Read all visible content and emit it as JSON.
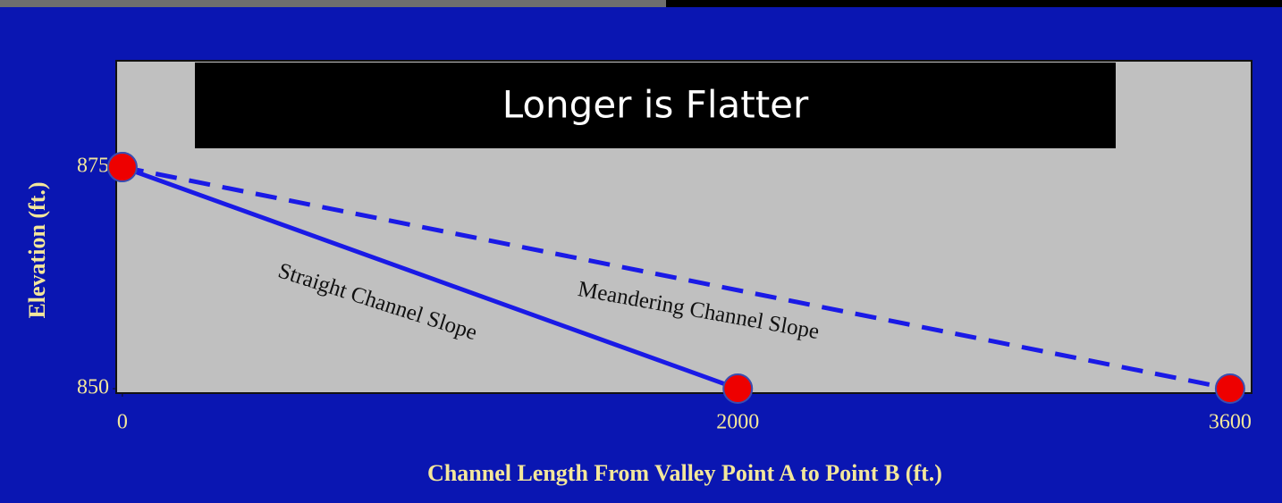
{
  "chart_data": {
    "type": "line",
    "title": "Longer is Flatter",
    "xlabel": "Channel Length From Valley Point A to Point B (ft.)",
    "ylabel": "Elevation (ft.)",
    "xlim": [
      -20,
      3670
    ],
    "ylim": [
      849.5,
      887
    ],
    "xticks": [
      0,
      2000,
      3600
    ],
    "yticks": [
      850,
      875
    ],
    "series": [
      {
        "name": "Straight Channel Slope",
        "color": "#1a1ae6",
        "dashed": false,
        "x": [
          0,
          2000
        ],
        "values": [
          875,
          850
        ]
      },
      {
        "name": "Meandering Channel Slope",
        "color": "#1a1ae6",
        "dashed": true,
        "x": [
          0,
          3600
        ],
        "values": [
          875,
          850
        ]
      }
    ],
    "marker_color": "#ee0000"
  }
}
